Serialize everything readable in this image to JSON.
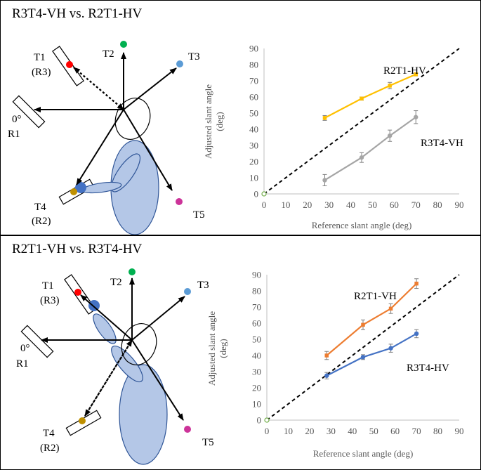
{
  "panels": [
    {
      "title": "R3T4-VH vs. R2T1-HV",
      "diagram": {
        "T1": "T1",
        "R3": "(R3)",
        "T2": "T2",
        "T3": "T3",
        "T4": "T4",
        "R2": "(R2)",
        "T5": "T5",
        "zero": "0°",
        "R1": "R1"
      }
    },
    {
      "title": "R2T1-VH vs. R3T4-HV",
      "diagram": {
        "T1": "T1",
        "R3": "(R3)",
        "T2": "T2",
        "T3": "T3",
        "T4": "T4",
        "R2": "(R2)",
        "T5": "T5",
        "zero": "0°",
        "R1": "R1"
      }
    }
  ],
  "colors": {
    "T1": "#ff0000",
    "T2": "#00b050",
    "T3": "#5b9bd5",
    "T4": "#bf9000",
    "T5": "#cc3399",
    "ellipse_fill": "#b4c7e7",
    "ellipse_stroke": "#2f5597",
    "hand": "#4472c4"
  },
  "chart_data": [
    {
      "type": "line",
      "xlabel": "Reference slant angle (deg)",
      "ylabel": "Adjusted slant angle (deg)",
      "ylabel_lines": [
        "Adjusted slant angle",
        "(deg)"
      ],
      "xlim": [
        0,
        90
      ],
      "ylim": [
        0,
        90
      ],
      "xticks": [
        0,
        10,
        20,
        30,
        40,
        50,
        60,
        70,
        80,
        90
      ],
      "yticks": [
        0,
        10,
        20,
        30,
        40,
        50,
        60,
        70,
        80,
        90
      ],
      "grid": false,
      "reference_line": {
        "style": "dashed",
        "from": [
          0,
          0
        ],
        "to": [
          90,
          90
        ]
      },
      "origin_marker": [
        0,
        0
      ],
      "series": [
        {
          "name": "R2T1-HV",
          "color": "#ffc000",
          "x": [
            28,
            45,
            58,
            70
          ],
          "y": [
            47,
            59,
            67,
            74
          ],
          "err": [
            1.5,
            1,
            2,
            1
          ]
        },
        {
          "name": "R3T4-VH",
          "color": "#a5a5a5",
          "x": [
            28,
            45,
            58,
            70
          ],
          "y": [
            8.5,
            22.5,
            36,
            47.5
          ],
          "err": [
            3.5,
            3,
            3.5,
            4
          ]
        }
      ]
    },
    {
      "type": "line",
      "xlabel": "Reference slant angle (deg)",
      "ylabel": "Adjusted slant angle (deg)",
      "ylabel_lines": [
        "Adjusted slant angle",
        "(deg)"
      ],
      "xlim": [
        0,
        90
      ],
      "ylim": [
        0,
        90
      ],
      "xticks": [
        0,
        10,
        20,
        30,
        40,
        50,
        60,
        70,
        80,
        90
      ],
      "yticks": [
        0,
        10,
        20,
        30,
        40,
        50,
        60,
        70,
        80,
        90
      ],
      "grid": false,
      "reference_line": {
        "style": "dashed",
        "from": [
          0,
          0
        ],
        "to": [
          90,
          90
        ]
      },
      "origin_marker": [
        0,
        0
      ],
      "series": [
        {
          "name": "R2T1-VH",
          "color": "#ed7d31",
          "x": [
            28,
            45,
            58,
            70
          ],
          "y": [
            40,
            59,
            69,
            84.5
          ],
          "err": [
            2.5,
            3,
            3,
            3
          ]
        },
        {
          "name": "R3T4-HV",
          "color": "#4472c4",
          "x": [
            28,
            45,
            58,
            70
          ],
          "y": [
            27.5,
            39,
            44.5,
            53.5
          ],
          "err": [
            2,
            1.5,
            2.5,
            2.5
          ]
        }
      ]
    }
  ]
}
